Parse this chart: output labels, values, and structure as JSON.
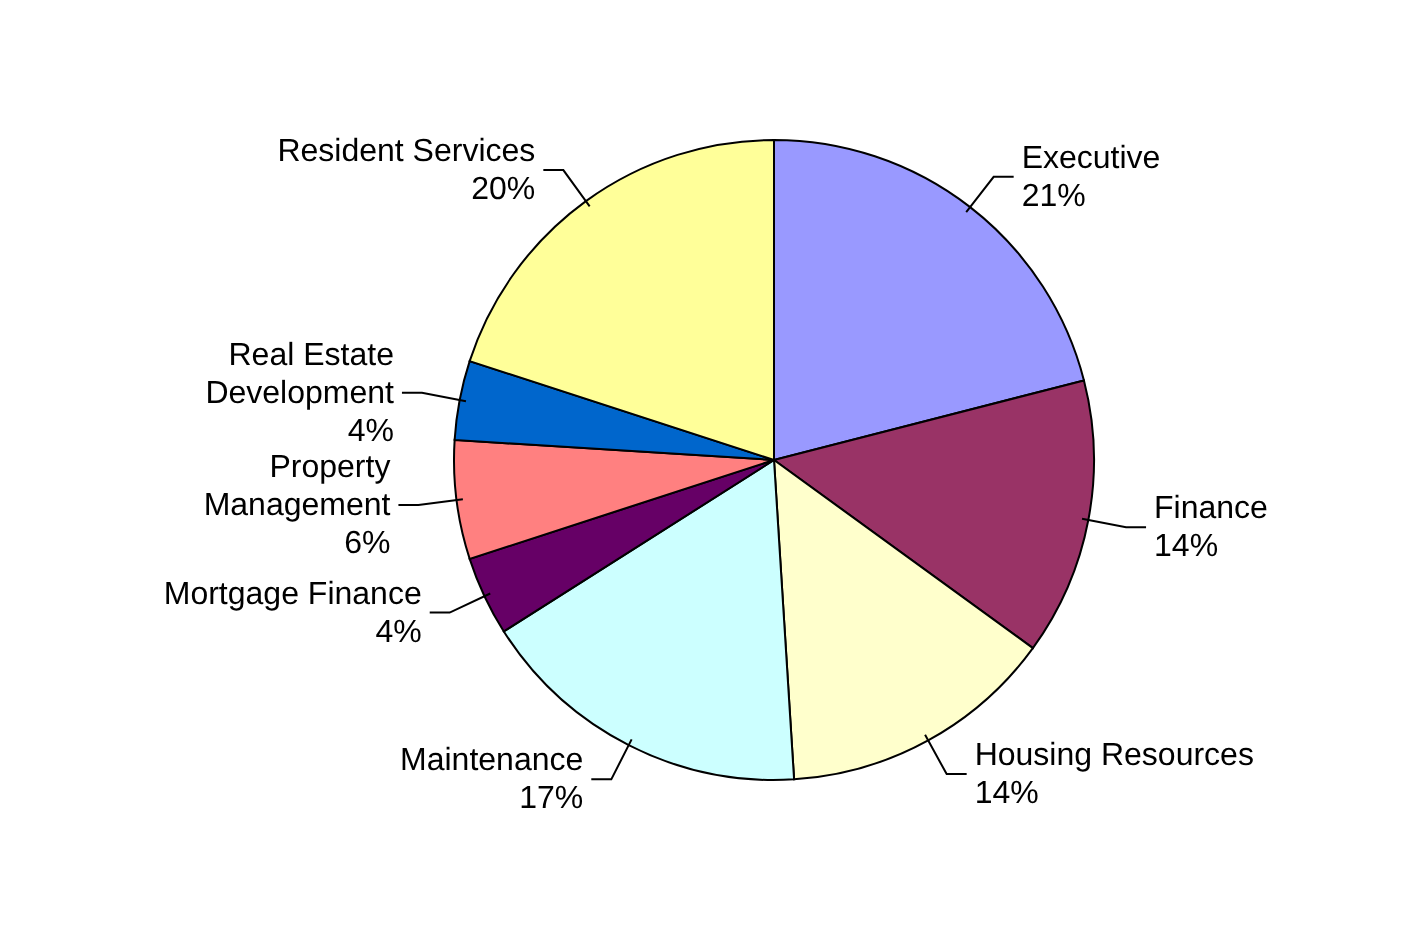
{
  "chart_data": {
    "type": "pie",
    "categories": [
      "Executive",
      "Finance",
      "Housing Resources",
      "Maintenance",
      "Mortgage Finance",
      "Property Management",
      "Real Estate Development",
      "Resident Services"
    ],
    "values": [
      21,
      14,
      14,
      17,
      4,
      6,
      4,
      20
    ],
    "value_labels": [
      "21%",
      "14%",
      "14%",
      "17%",
      "4%",
      "6%",
      "4%",
      "20%"
    ],
    "colors": [
      "#9999ff",
      "#993366",
      "#ffffcc",
      "#ccffff",
      "#660066",
      "#ff8080",
      "#0066cc",
      "#ffff99"
    ]
  }
}
